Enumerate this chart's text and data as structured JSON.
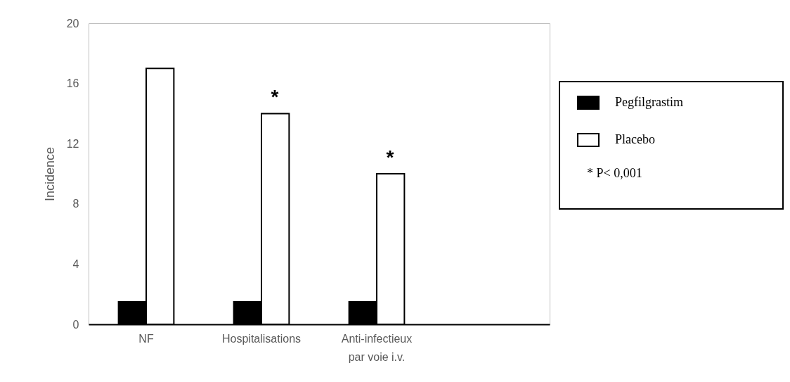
{
  "chart_data": {
    "type": "bar",
    "ylabel": "Incidence",
    "categories": [
      "NF",
      "Hospitalisations",
      "Anti-infectieux\npar voie i.v.",
      null
    ],
    "series": [
      {
        "name": "Pegfilgrastim",
        "color": "#000000",
        "values": [
          1.5,
          1.5,
          1.5,
          null
        ]
      },
      {
        "name": "Placebo",
        "color": "#ffffff",
        "values": [
          17,
          14,
          10,
          null
        ]
      }
    ],
    "ylim": [
      0,
      20
    ],
    "yticks": [
      0,
      4,
      8,
      12,
      16,
      20
    ],
    "grid": false,
    "legend": "right",
    "annotations": [
      {
        "text": "*",
        "x": "Hospitalisations",
        "y": 14
      },
      {
        "text": "*",
        "x": "Anti-infectieux\npar voie i.v.",
        "y": 10
      },
      "* P< 0,001"
    ]
  }
}
